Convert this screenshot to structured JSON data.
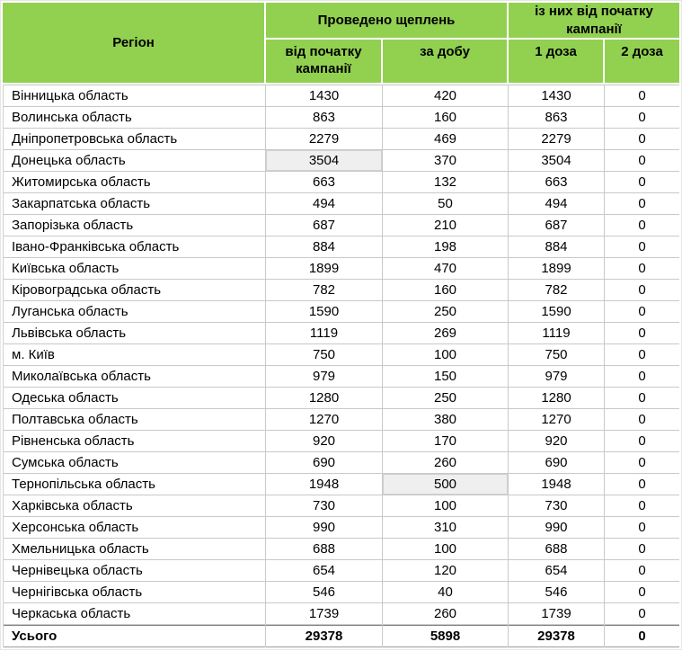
{
  "colors": {
    "header_green": "#92D050",
    "grid_line": "#c9c9c9",
    "highlight_cell_bg": "#efefef",
    "total_border": "#808080",
    "text": "#000000"
  },
  "table": {
    "header": {
      "region": "Регіон",
      "group1": "Проведено щеплень",
      "group2": "із них від початку кампанії",
      "sub": [
        "від початку кампанії",
        "за добу",
        "1 доза",
        "2 доза"
      ]
    },
    "rows": [
      {
        "region": "Вінницька область",
        "values": [
          "1430",
          "420",
          "1430",
          "0"
        ],
        "highlight_col": null
      },
      {
        "region": "Волинська область",
        "values": [
          "863",
          "160",
          "863",
          "0"
        ],
        "highlight_col": null
      },
      {
        "region": "Дніпропетровська область",
        "values": [
          "2279",
          "469",
          "2279",
          "0"
        ],
        "highlight_col": null
      },
      {
        "region": "Донецька область",
        "values": [
          "3504",
          "370",
          "3504",
          "0"
        ],
        "highlight_col": 0
      },
      {
        "region": "Житомирська область",
        "values": [
          "663",
          "132",
          "663",
          "0"
        ],
        "highlight_col": null
      },
      {
        "region": "Закарпатська область",
        "values": [
          "494",
          "50",
          "494",
          "0"
        ],
        "highlight_col": null
      },
      {
        "region": "Запорізька область",
        "values": [
          "687",
          "210",
          "687",
          "0"
        ],
        "highlight_col": null
      },
      {
        "region": "Івано-Франківська область",
        "values": [
          "884",
          "198",
          "884",
          "0"
        ],
        "highlight_col": null
      },
      {
        "region": "Київська область",
        "values": [
          "1899",
          "470",
          "1899",
          "0"
        ],
        "highlight_col": null
      },
      {
        "region": "Кіровоградська область",
        "values": [
          "782",
          "160",
          "782",
          "0"
        ],
        "highlight_col": null
      },
      {
        "region": "Луганська область",
        "values": [
          "1590",
          "250",
          "1590",
          "0"
        ],
        "highlight_col": null
      },
      {
        "region": "Львівська область",
        "values": [
          "1119",
          "269",
          "1119",
          "0"
        ],
        "highlight_col": null
      },
      {
        "region": "м. Київ",
        "values": [
          "750",
          "100",
          "750",
          "0"
        ],
        "highlight_col": null
      },
      {
        "region": "Миколаївська область",
        "values": [
          "979",
          "150",
          "979",
          "0"
        ],
        "highlight_col": null
      },
      {
        "region": "Одеська область",
        "values": [
          "1280",
          "250",
          "1280",
          "0"
        ],
        "highlight_col": null
      },
      {
        "region": "Полтавська область",
        "values": [
          "1270",
          "380",
          "1270",
          "0"
        ],
        "highlight_col": null
      },
      {
        "region": "Рівненська область",
        "values": [
          "920",
          "170",
          "920",
          "0"
        ],
        "highlight_col": null
      },
      {
        "region": "Сумська область",
        "values": [
          "690",
          "260",
          "690",
          "0"
        ],
        "highlight_col": null
      },
      {
        "region": "Тернопільська область",
        "values": [
          "1948",
          "500",
          "1948",
          "0"
        ],
        "highlight_col": 1
      },
      {
        "region": "Харківська область",
        "values": [
          "730",
          "100",
          "730",
          "0"
        ],
        "highlight_col": null
      },
      {
        "region": "Херсонська область",
        "values": [
          "990",
          "310",
          "990",
          "0"
        ],
        "highlight_col": null
      },
      {
        "region": "Хмельницька область",
        "values": [
          "688",
          "100",
          "688",
          "0"
        ],
        "highlight_col": null
      },
      {
        "region": "Чернівецька область",
        "values": [
          "654",
          "120",
          "654",
          "0"
        ],
        "highlight_col": null
      },
      {
        "region": "Чернігівська область",
        "values": [
          "546",
          "40",
          "546",
          "0"
        ],
        "highlight_col": null
      },
      {
        "region": "Черкаська область",
        "values": [
          "1739",
          "260",
          "1739",
          "0"
        ],
        "highlight_col": null
      }
    ],
    "total": {
      "label": "Усього",
      "values": [
        "29378",
        "5898",
        "29378",
        "0"
      ]
    }
  }
}
